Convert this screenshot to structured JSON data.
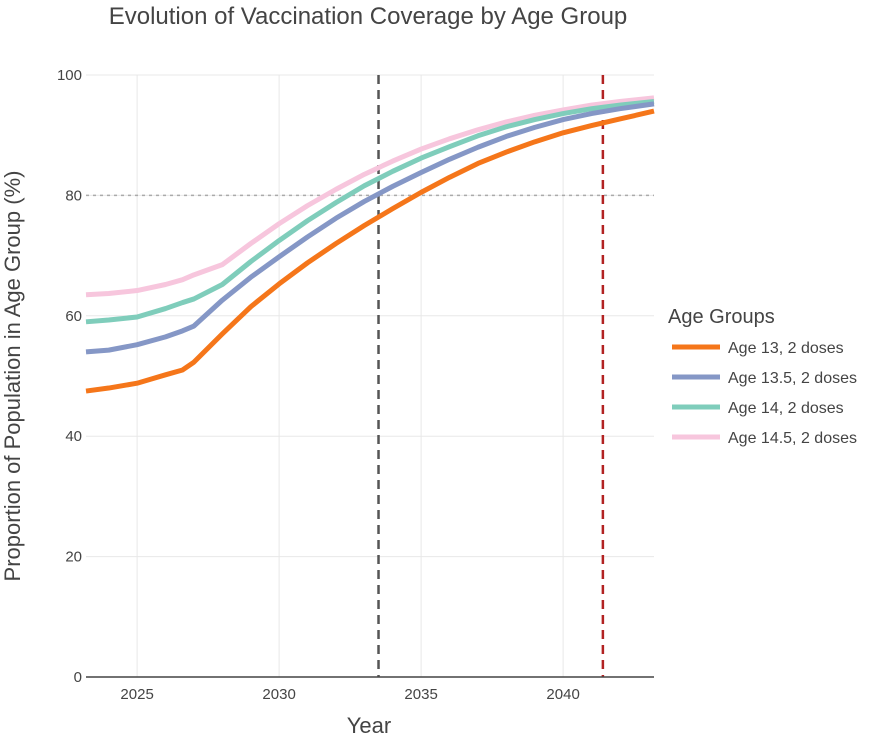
{
  "chart_data": {
    "type": "line",
    "title": "Evolution of Vaccination Coverage by Age Group",
    "xlabel": "Year",
    "ylabel": "Proportion of Population in Age Group (%)",
    "xlim": [
      2023.2,
      2043.2
    ],
    "ylim": [
      0,
      100
    ],
    "x_ticks": [
      2025,
      2030,
      2035,
      2040
    ],
    "y_ticks": [
      0,
      20,
      40,
      60,
      80,
      100
    ],
    "grid": true,
    "legend_title": "Age Groups",
    "legend_position": "right",
    "x": [
      2023.2,
      2024,
      2025,
      2026,
      2026.6,
      2027,
      2028,
      2029,
      2030,
      2031,
      2032,
      2033,
      2034,
      2035,
      2036,
      2037,
      2038,
      2039,
      2040,
      2041,
      2042,
      2043.2
    ],
    "series": [
      {
        "name": "Age 13, 2 doses",
        "color": "#f5761a",
        "values": [
          47.5,
          48.0,
          48.8,
          50.2,
          51.0,
          52.3,
          57.0,
          61.5,
          65.3,
          68.8,
          72.0,
          75.0,
          77.8,
          80.5,
          83.0,
          85.3,
          87.2,
          88.9,
          90.4,
          91.6,
          92.7,
          94.0
        ]
      },
      {
        "name": "Age 13.5, 2 doses",
        "color": "#8597c6",
        "values": [
          54.0,
          54.3,
          55.2,
          56.5,
          57.5,
          58.3,
          62.6,
          66.4,
          69.8,
          73.1,
          76.2,
          79.0,
          81.5,
          83.8,
          86.0,
          88.0,
          89.8,
          91.3,
          92.6,
          93.6,
          94.4,
          95.2
        ]
      },
      {
        "name": "Age 14, 2 doses",
        "color": "#7fcdbb",
        "values": [
          59.0,
          59.3,
          59.8,
          61.2,
          62.2,
          62.8,
          65.2,
          69.0,
          72.5,
          75.8,
          78.8,
          81.6,
          84.0,
          86.2,
          88.1,
          89.9,
          91.4,
          92.6,
          93.6,
          94.4,
          95.0,
          95.6
        ]
      },
      {
        "name": "Age 14.5, 2 doses",
        "color": "#f7c6dd",
        "values": [
          63.5,
          63.7,
          64.2,
          65.2,
          66.0,
          66.8,
          68.5,
          72.0,
          75.3,
          78.3,
          81.0,
          83.5,
          85.7,
          87.7,
          89.4,
          90.9,
          92.2,
          93.3,
          94.2,
          95.0,
          95.6,
          96.2
        ]
      }
    ],
    "reference_lines": [
      {
        "orientation": "horizontal",
        "value": 80,
        "color": "#aaaaaa",
        "style": "dotted"
      },
      {
        "orientation": "vertical",
        "value": 2033.5,
        "color": "#555555",
        "style": "dashed"
      },
      {
        "orientation": "vertical",
        "value": 2041.4,
        "color": "#b22222",
        "style": "dashed"
      }
    ]
  }
}
